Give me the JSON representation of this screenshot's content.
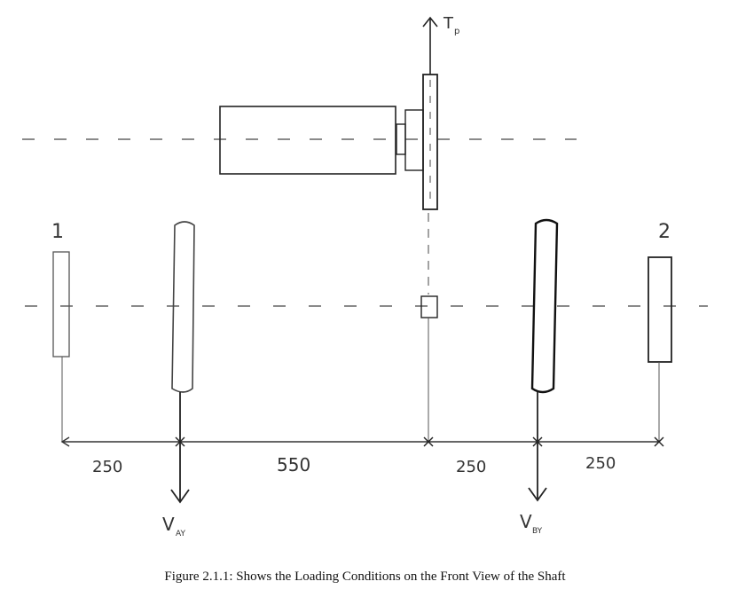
{
  "figure": {
    "caption": "Figure 2.1.1: Shows the Loading Conditions on the Front View of the Shaft"
  },
  "labels": {
    "bearing_left": "1",
    "bearing_right": "2",
    "force_top": "T",
    "force_top_sub": "p",
    "reaction_a": "V",
    "reaction_a_sub": "AY",
    "reaction_b": "V",
    "reaction_b_sub": "BY"
  },
  "dimensions": [
    "250",
    "550",
    "250",
    "250"
  ]
}
